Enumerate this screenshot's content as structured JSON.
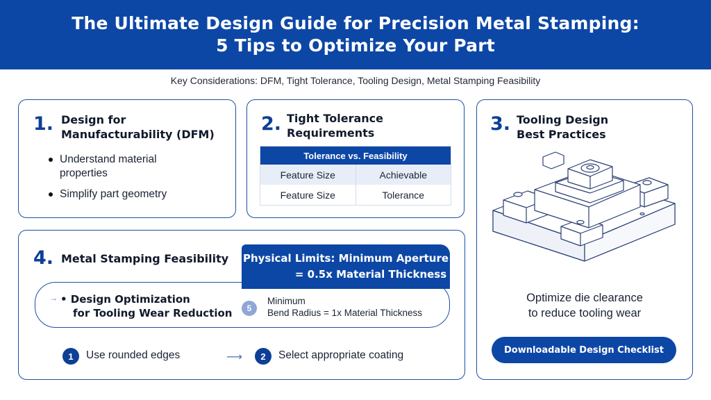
{
  "header": {
    "title_line1": "The Ultimate Design Guide for Precision Metal Stamping:",
    "title_line2": "5 Tips to Optimize Your Part"
  },
  "subtitle": "Key Considerations: DFM, Tight Tolerance, Tooling Design, Metal Stamping Feasibility",
  "card1": {
    "number": "1.",
    "title_line1": "Design for",
    "title_line2": "Manufacturability (DFM)",
    "bullets": [
      "Understand material properties",
      "Simplify part geometry"
    ],
    "bullet1_line1": "Understand material",
    "bullet1_line2": "properties"
  },
  "card2": {
    "number": "2.",
    "title_line1": "Tight Tolerance",
    "title_line2": "Requirements",
    "table": {
      "header": "Tolerance vs. Feasibility",
      "rows": [
        [
          "Feature Size",
          "Achievable"
        ],
        [
          "Feature Size",
          "Tolerance"
        ]
      ]
    }
  },
  "card3": {
    "number": "3.",
    "title_line1": "Tooling Design",
    "title_line2": "Best Practices",
    "illustration_icon": "stamping-die-illustration",
    "text_line1": "Optimize die clearance",
    "text_line2": "to reduce tooling wear",
    "button_label": "Downloadable Design Checklist"
  },
  "card4": {
    "number": "4.",
    "title": "Metal Stamping Feasibility",
    "limits_line1": "Physical Limits: Minimum Aperture",
    "limits_line2": "= 0.5x Material Thickness",
    "optimization_line1": "• Design Optimization",
    "optimization_line2": "for Tooling Wear Reduction",
    "badge5": "5",
    "min_line1": "Minimum",
    "min_line2": "Bend Radius = 1x Material Thickness",
    "steps": [
      {
        "num": "1",
        "label": "Use rounded edges"
      },
      {
        "num": "2",
        "label": "Select appropriate coating"
      }
    ]
  },
  "colors": {
    "primary": "#0d47a6",
    "border": "#1d4ea3",
    "table_alt": "#e8eef8"
  }
}
